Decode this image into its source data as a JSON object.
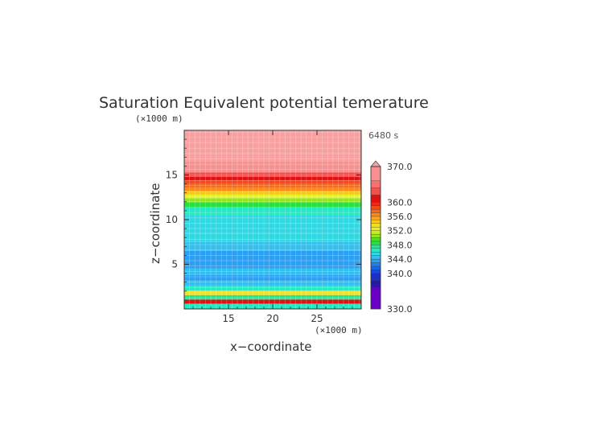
{
  "chart_data": {
    "type": "heatmap",
    "title": "Saturation Equivalent potential temerature",
    "xlabel": "x−coordinate",
    "ylabel": "z−coordinate",
    "x_unit": "(×1000 m)",
    "y_unit": "(×1000 m)",
    "time_label": "6480 s",
    "xlim": [
      10,
      30
    ],
    "ylim": [
      0,
      20
    ],
    "x_ticks": [
      15,
      20,
      25
    ],
    "y_ticks": [
      5,
      10,
      15
    ],
    "grid": true,
    "colorbar": {
      "min": 330,
      "max": 370,
      "labels": [
        "370.0",
        "360.0",
        "356.0",
        "352.0",
        "348.0",
        "344.0",
        "340.0",
        "330.0"
      ],
      "label_values": [
        370,
        360,
        356,
        352,
        348,
        344,
        340,
        330
      ],
      "levels": [
        330,
        336,
        338,
        340,
        341,
        342,
        343,
        344,
        345,
        346,
        347,
        348,
        349,
        350,
        351,
        352,
        353,
        354,
        355,
        356,
        357,
        358,
        359,
        360,
        362,
        364,
        366,
        370
      ],
      "colors": [
        "#6a00c8",
        "#2a18a8",
        "#1a30c8",
        "#1848d8",
        "#1a64e8",
        "#2080f0",
        "#2aa0f4",
        "#33c0f0",
        "#30d8e4",
        "#28e8c4",
        "#20e890",
        "#28e040",
        "#50e020",
        "#90e820",
        "#c8f020",
        "#e8f020",
        "#f0e020",
        "#f8c820",
        "#f8a818",
        "#f88a18",
        "#f86818",
        "#f84818",
        "#f02818",
        "#e01010",
        "#f05050",
        "#f87070",
        "#f89090"
      ],
      "overflow_color": "#f8a0a0"
    },
    "profile": [
      {
        "z": 0.3,
        "value": 346
      },
      {
        "z": 0.8,
        "value": 360
      },
      {
        "z": 1.3,
        "value": 347
      },
      {
        "z": 1.8,
        "value": 353
      },
      {
        "z": 2.3,
        "value": 346
      },
      {
        "z": 2.9,
        "value": 344
      },
      {
        "z": 3.5,
        "value": 343
      },
      {
        "z": 4.1,
        "value": 344
      },
      {
        "z": 5.0,
        "value": 343
      },
      {
        "z": 6.0,
        "value": 343
      },
      {
        "z": 7.0,
        "value": 344
      },
      {
        "z": 8.0,
        "value": 345
      },
      {
        "z": 9.0,
        "value": 345
      },
      {
        "z": 10.0,
        "value": 345
      },
      {
        "z": 11.0,
        "value": 346
      },
      {
        "z": 11.7,
        "value": 348
      },
      {
        "z": 12.2,
        "value": 350
      },
      {
        "z": 12.6,
        "value": 352
      },
      {
        "z": 13.0,
        "value": 354
      },
      {
        "z": 13.4,
        "value": 356
      },
      {
        "z": 13.8,
        "value": 357
      },
      {
        "z": 14.2,
        "value": 358
      },
      {
        "z": 14.6,
        "value": 360
      },
      {
        "z": 15.0,
        "value": 362
      },
      {
        "z": 15.6,
        "value": 366
      },
      {
        "z": 17.5,
        "value": 375
      },
      {
        "z": 20.0,
        "value": 380
      }
    ]
  }
}
